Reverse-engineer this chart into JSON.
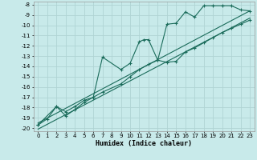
{
  "xlabel": "Humidex (Indice chaleur)",
  "bg_color": "#c8eaea",
  "grid_color": "#afd4d4",
  "line_color": "#1a6b5a",
  "xlim": [
    -0.5,
    23.5
  ],
  "ylim": [
    -20.3,
    -7.7
  ],
  "xticks": [
    0,
    1,
    2,
    3,
    4,
    5,
    6,
    7,
    8,
    9,
    10,
    11,
    12,
    13,
    14,
    15,
    16,
    17,
    18,
    19,
    20,
    21,
    22,
    23
  ],
  "yticks": [
    -20,
    -19,
    -18,
    -17,
    -16,
    -15,
    -14,
    -13,
    -12,
    -11,
    -10,
    -9,
    -8
  ],
  "curve1_x": [
    0,
    1,
    2,
    3,
    4,
    5,
    6,
    7,
    9,
    10,
    11,
    12,
    13,
    14,
    15,
    16,
    17,
    18,
    19,
    20,
    21,
    22,
    23
  ],
  "curve1_y": [
    -19.7,
    -19.1,
    -17.9,
    -18.4,
    -17.9,
    -17.3,
    -17.0,
    -16.5,
    -15.7,
    -15.0,
    -14.3,
    -13.8,
    -13.4,
    -13.6,
    -13.5,
    -12.6,
    -12.2,
    -11.7,
    -11.2,
    -10.7,
    -10.3,
    -9.9,
    -9.5
  ],
  "curve2_x": [
    0,
    2,
    3,
    4,
    5,
    6,
    7,
    9,
    10,
    11,
    11.5,
    12,
    13,
    14,
    15,
    16,
    17,
    18,
    19,
    20,
    21,
    22,
    23
  ],
  "curve2_y": [
    -19.7,
    -17.9,
    -18.8,
    -18.2,
    -17.5,
    -17.0,
    -13.1,
    -14.3,
    -13.7,
    -11.6,
    -11.4,
    -11.4,
    -13.4,
    -9.9,
    -9.8,
    -8.7,
    -9.2,
    -8.1,
    -8.1,
    -8.1,
    -8.1,
    -8.5,
    -8.6
  ],
  "line1_x": [
    0,
    23
  ],
  "line1_y": [
    -19.5,
    -8.6
  ],
  "line2_x": [
    0,
    23
  ],
  "line2_y": [
    -20.1,
    -9.3
  ],
  "marker_size": 2.5,
  "linewidth": 0.8,
  "tick_fontsize": 5.0,
  "xlabel_fontsize": 6.0
}
